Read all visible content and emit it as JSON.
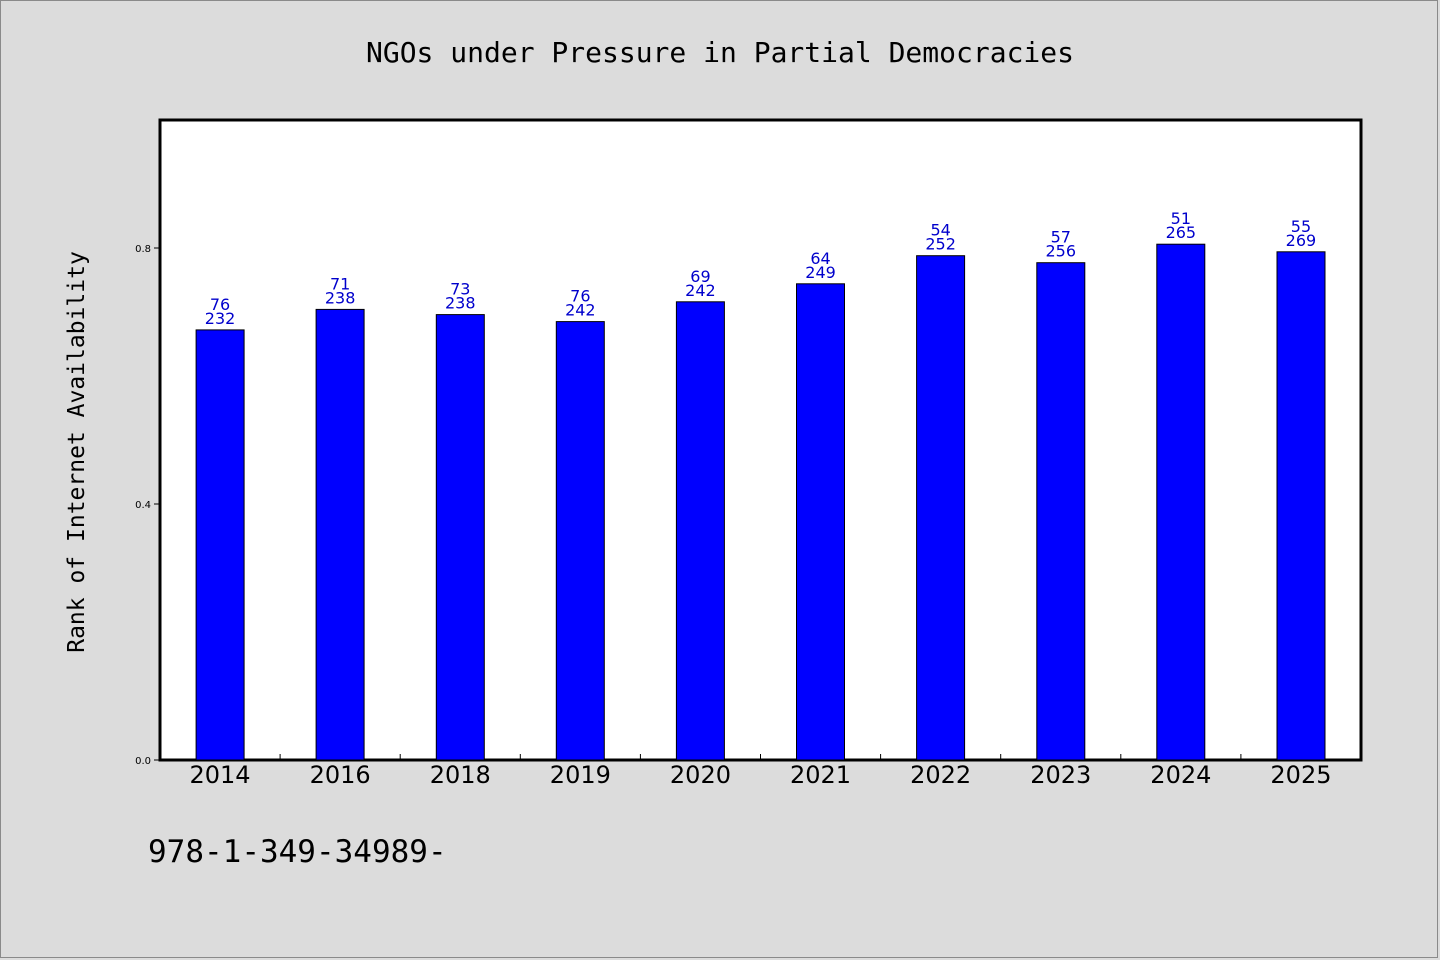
{
  "chart_data": {
    "type": "bar",
    "title": "NGOs under Pressure in Partial Democracies",
    "ylabel": "Rank of Internet Availability",
    "xlabel": "",
    "ylim": [
      0.0,
      1.0
    ],
    "yticks": [
      "0.0",
      "0.4",
      "0.8"
    ],
    "ytick_values": [
      0.0,
      0.4,
      0.8
    ],
    "grid": false,
    "bar_color": "#0000ff",
    "label_color": "#0000cc",
    "categories": [
      "2014",
      "2016",
      "2018",
      "2019",
      "2020",
      "2021",
      "2022",
      "2023",
      "2024",
      "2025"
    ],
    "values": [
      0.672,
      0.704,
      0.696,
      0.685,
      0.716,
      0.744,
      0.788,
      0.777,
      0.806,
      0.794
    ],
    "labels_top": [
      "76",
      "71",
      "73",
      "76",
      "69",
      "64",
      "54",
      "57",
      "51",
      "55"
    ],
    "labels_bottom": [
      "232",
      "238",
      "238",
      "242",
      "242",
      "249",
      "252",
      "256",
      "265",
      "269"
    ]
  },
  "footnote": "978-1-349-34989-",
  "colors": {
    "background": "#dcdcdc",
    "plot_background": "#ffffff"
  }
}
